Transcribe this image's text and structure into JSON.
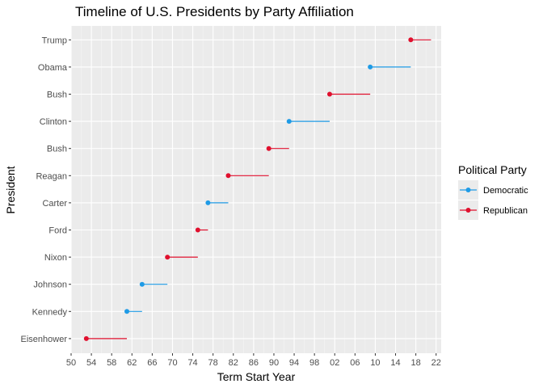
{
  "chart_data": {
    "type": "scatter",
    "title": "Timeline of U.S. Presidents by Party Affiliation",
    "xlabel": "Term Start Year",
    "ylabel": "President",
    "xlim": [
      1950,
      2023
    ],
    "xticks": [
      1950,
      1954,
      1958,
      1962,
      1966,
      1970,
      1974,
      1978,
      1982,
      1986,
      1990,
      1994,
      1998,
      2002,
      2006,
      2010,
      2014,
      2018,
      2022
    ],
    "xtick_labels": [
      "50",
      "54",
      "58",
      "62",
      "66",
      "70",
      "74",
      "78",
      "82",
      "86",
      "90",
      "94",
      "98",
      "02",
      "06",
      "10",
      "14",
      "18",
      "22"
    ],
    "categories": [
      "Eisenhower",
      "Kennedy",
      "Johnson",
      "Nixon",
      "Ford",
      "Carter",
      "Reagan",
      "Bush",
      "Clinton",
      "Bush",
      "Obama",
      "Trump"
    ],
    "presidents": [
      {
        "name": "Eisenhower",
        "party": "Republican",
        "start": 1953,
        "end": 1961
      },
      {
        "name": "Kennedy",
        "party": "Democratic",
        "start": 1961,
        "end": 1964
      },
      {
        "name": "Johnson",
        "party": "Democratic",
        "start": 1964,
        "end": 1969
      },
      {
        "name": "Nixon",
        "party": "Republican",
        "start": 1969,
        "end": 1975
      },
      {
        "name": "Ford",
        "party": "Republican",
        "start": 1975,
        "end": 1977
      },
      {
        "name": "Carter",
        "party": "Democratic",
        "start": 1977,
        "end": 1981
      },
      {
        "name": "Reagan",
        "party": "Republican",
        "start": 1981,
        "end": 1989
      },
      {
        "name": "Bush",
        "party": "Republican",
        "start": 1989,
        "end": 1993
      },
      {
        "name": "Clinton",
        "party": "Democratic",
        "start": 1993,
        "end": 2001
      },
      {
        "name": "Bush",
        "party": "Republican",
        "start": 2001,
        "end": 2009
      },
      {
        "name": "Obama",
        "party": "Democratic",
        "start": 2009,
        "end": 2017
      },
      {
        "name": "Trump",
        "party": "Republican",
        "start": 2017,
        "end": 2021
      }
    ],
    "legend": {
      "title": "Political Party",
      "placement": "right",
      "entries": [
        {
          "name": "Democratic",
          "color": "#1f9be6"
        },
        {
          "name": "Republican",
          "color": "#e0102e"
        }
      ]
    },
    "grid": true,
    "panel_background": "#ebebeb"
  }
}
